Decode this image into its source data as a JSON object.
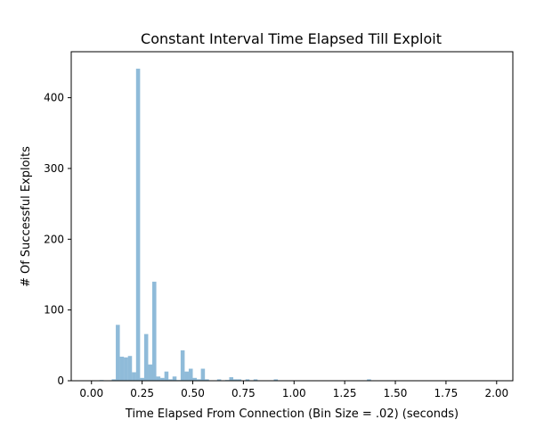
{
  "chart_data": {
    "type": "bar",
    "title": "Constant Interval Time Elapsed Till Exploit",
    "xlabel": "Time Elapsed From Connection (Bin Size = .02) (seconds)",
    "ylabel": "# Of Successful Exploits",
    "xlim": [
      -0.1,
      2.08
    ],
    "ylim": [
      0,
      465
    ],
    "bin_size": 0.02,
    "bar_color": "#1f77b4",
    "bar_opacity": 0.5,
    "grid": false,
    "x_ticks": [
      "0.00",
      "0.25",
      "0.50",
      "0.75",
      "1.00",
      "1.25",
      "1.50",
      "1.75",
      "2.00"
    ],
    "y_ticks": [
      "0",
      "100",
      "200",
      "300",
      "400"
    ],
    "bins": [
      {
        "x": 0.04,
        "value": 1
      },
      {
        "x": 0.1,
        "value": 2
      },
      {
        "x": 0.12,
        "value": 79
      },
      {
        "x": 0.14,
        "value": 34
      },
      {
        "x": 0.16,
        "value": 33
      },
      {
        "x": 0.18,
        "value": 35
      },
      {
        "x": 0.2,
        "value": 12
      },
      {
        "x": 0.22,
        "value": 441
      },
      {
        "x": 0.24,
        "value": 4
      },
      {
        "x": 0.26,
        "value": 66
      },
      {
        "x": 0.28,
        "value": 23
      },
      {
        "x": 0.3,
        "value": 140
      },
      {
        "x": 0.32,
        "value": 6
      },
      {
        "x": 0.34,
        "value": 4
      },
      {
        "x": 0.36,
        "value": 13
      },
      {
        "x": 0.38,
        "value": 2
      },
      {
        "x": 0.4,
        "value": 6
      },
      {
        "x": 0.42,
        "value": 1
      },
      {
        "x": 0.44,
        "value": 43
      },
      {
        "x": 0.46,
        "value": 13
      },
      {
        "x": 0.48,
        "value": 17
      },
      {
        "x": 0.5,
        "value": 4
      },
      {
        "x": 0.52,
        "value": 2
      },
      {
        "x": 0.54,
        "value": 17
      },
      {
        "x": 0.56,
        "value": 2
      },
      {
        "x": 0.62,
        "value": 2
      },
      {
        "x": 0.66,
        "value": 1
      },
      {
        "x": 0.68,
        "value": 5
      },
      {
        "x": 0.7,
        "value": 2
      },
      {
        "x": 0.72,
        "value": 2
      },
      {
        "x": 0.76,
        "value": 2
      },
      {
        "x": 0.8,
        "value": 2
      },
      {
        "x": 0.9,
        "value": 2
      },
      {
        "x": 1.36,
        "value": 2
      }
    ]
  }
}
